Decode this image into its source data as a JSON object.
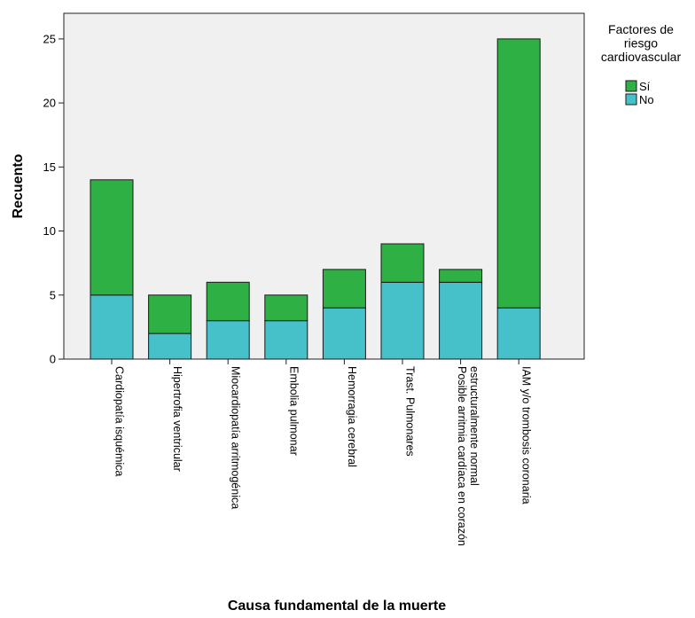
{
  "chart_data": {
    "type": "bar",
    "stacked": true,
    "xlabel": "Causa fundamental de la muerte",
    "ylabel": "Recuento",
    "ylim": [
      0,
      27
    ],
    "yticks": [
      0,
      5,
      10,
      15,
      20,
      25
    ],
    "categories": [
      [
        "Cardiopatía isquémica"
      ],
      [
        "Hipertrofia ventricular"
      ],
      [
        "Miocardiopatía arritmogénica"
      ],
      [
        "Embolia pulmonar"
      ],
      [
        "Hemorragia cerebral"
      ],
      [
        "Trast. Pulmonares"
      ],
      [
        "Posible arritmia cardíaca en corazón",
        "estructuralmente normal"
      ],
      [
        "IAM y/o trombosis coronaria"
      ]
    ],
    "series": [
      {
        "name": "No",
        "color": "#46c0c9",
        "values": [
          5,
          2,
          3,
          3,
          4,
          6,
          6,
          4
        ]
      },
      {
        "name": "Sí",
        "color": "#2fb044",
        "values": [
          9,
          3,
          3,
          2,
          3,
          3,
          1,
          21
        ]
      }
    ],
    "legend": {
      "title": [
        "Factores de",
        "riesgo",
        "cardiovascular"
      ],
      "order": [
        "Sí",
        "No"
      ],
      "position": "top-right"
    },
    "plot_background": "#f0f0f0",
    "grid": false
  }
}
